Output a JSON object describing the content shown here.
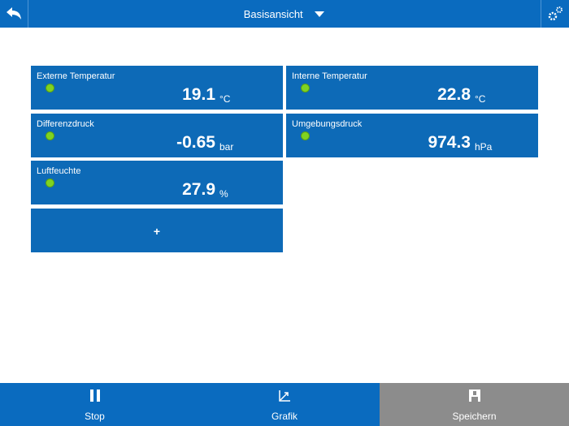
{
  "header": {
    "title": "Basisansicht"
  },
  "tiles": [
    {
      "label": "Externe Temperatur",
      "value": "19.1",
      "unit": "°C"
    },
    {
      "label": "Interne Temperatur",
      "value": "22.8",
      "unit": "°C"
    },
    {
      "label": "Differenzdruck",
      "value": "-0.65",
      "unit": "bar"
    },
    {
      "label": "Umgebungsdruck",
      "value": "974.3",
      "unit": "hPa"
    },
    {
      "label": "Luftfeuchte",
      "value": "27.9",
      "unit": "%"
    }
  ],
  "add_tile": {
    "label": "+"
  },
  "footer": {
    "buttons": [
      {
        "label": "Stop"
      },
      {
        "label": "Grafik"
      },
      {
        "label": "Speichern"
      }
    ]
  }
}
